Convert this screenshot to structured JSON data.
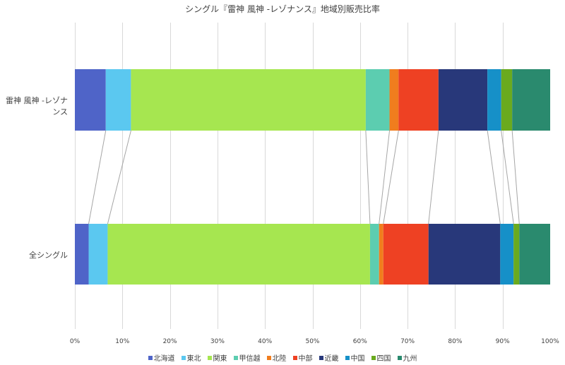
{
  "chart_data": {
    "type": "bar",
    "orientation": "horizontal",
    "stacked": "percent",
    "title": "シングル『雷神 風神 -レゾナンス』地域別販売比率",
    "xlabel": "",
    "ylabel": "",
    "xlim": [
      0,
      100
    ],
    "x_ticks": [
      "0%",
      "10%",
      "20%",
      "30%",
      "40%",
      "50%",
      "60%",
      "70%",
      "80%",
      "90%",
      "100%"
    ],
    "grid": true,
    "legend_position": "bottom",
    "series_lines": true,
    "categories": [
      "雷神 風神 -レゾナンス",
      "全シングル"
    ],
    "series": [
      {
        "name": "北海道",
        "color": "#4f64c8",
        "values": [
          6.5,
          2.9
        ]
      },
      {
        "name": "東北",
        "color": "#5bc8f0",
        "values": [
          5.3,
          4.0
        ]
      },
      {
        "name": "関東",
        "color": "#a6e650",
        "values": [
          49.4,
          55.2
        ]
      },
      {
        "name": "甲信越",
        "color": "#5ccdb0",
        "values": [
          5.0,
          1.9
        ]
      },
      {
        "name": "北陸",
        "color": "#f07d1e",
        "values": [
          1.9,
          0.9
        ]
      },
      {
        "name": "中部",
        "color": "#ee4123",
        "values": [
          8.4,
          9.5
        ]
      },
      {
        "name": "近畿",
        "color": "#28387a",
        "values": [
          10.3,
          15.1
        ]
      },
      {
        "name": "中国",
        "color": "#1690c8",
        "values": [
          2.9,
          2.8
        ]
      },
      {
        "name": "四国",
        "color": "#6aaa1e",
        "values": [
          2.3,
          1.2
        ]
      },
      {
        "name": "九州",
        "color": "#2a8a6e",
        "values": [
          8.0,
          6.5
        ]
      }
    ]
  }
}
